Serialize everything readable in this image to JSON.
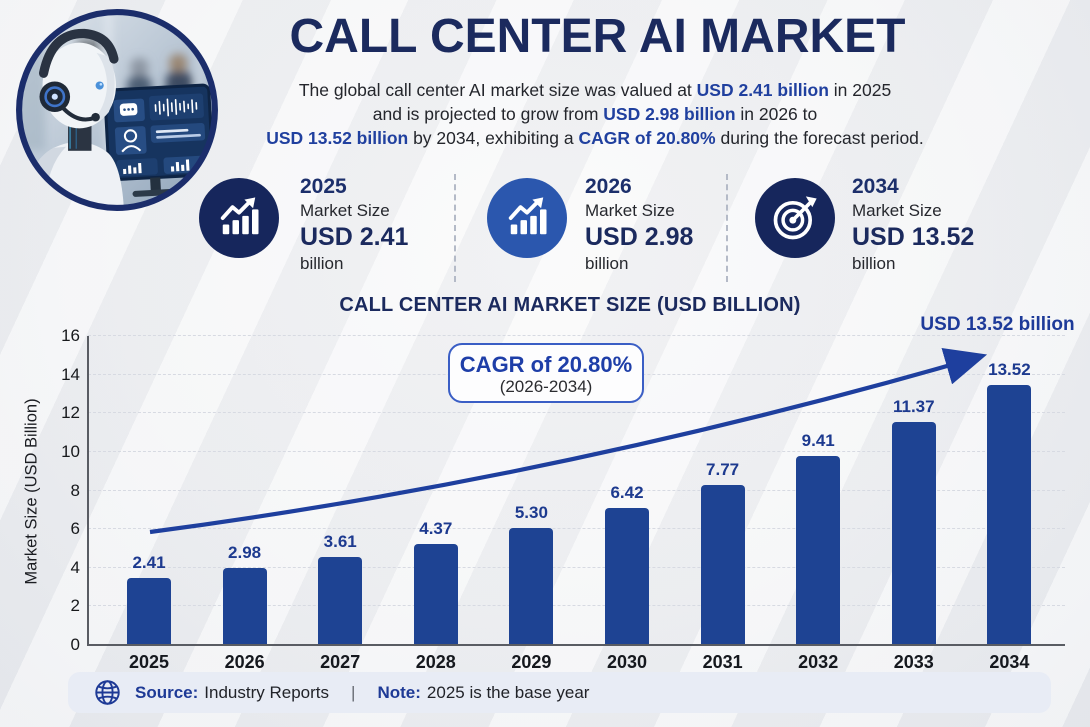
{
  "header": {
    "title": "CALL CENTER AI MARKET",
    "lines": [
      [
        {
          "t": "The global call center AI market size was valued at ",
          "em": false
        },
        {
          "t": "USD 2.41 billion",
          "em": true
        },
        {
          "t": " in 2025",
          "em": false
        }
      ],
      [
        {
          "t": "and is projected to grow from ",
          "em": false
        },
        {
          "t": "USD 2.98 billion",
          "em": true
        },
        {
          "t": " in 2026 to",
          "em": false
        }
      ],
      [
        {
          "t": "USD 13.52 billion",
          "em": true
        },
        {
          "t": " by 2034, exhibiting a ",
          "em": false
        },
        {
          "t": "CAGR of 20.80%",
          "em": true
        },
        {
          "t": " during the forecast period.",
          "em": false
        }
      ]
    ]
  },
  "stats": [
    {
      "year": "2025",
      "label": "Market Size",
      "value": "USD 2.41",
      "unit": "billion",
      "icon": "growth-chart-icon",
      "icon_bg": "#16265c"
    },
    {
      "year": "2026",
      "label": "Market Size",
      "value": "USD 2.98",
      "unit": "billion",
      "icon": "growth-chart-icon",
      "icon_bg": "#2b57ae"
    },
    {
      "year": "2034",
      "label": "Market Size",
      "value": "USD 13.52",
      "unit": "billion",
      "icon": "target-icon",
      "icon_bg": "#16265c"
    }
  ],
  "chart": {
    "title": "CALL CENTER AI MARKET SIZE (USD BILLION)",
    "peak_annotation": "USD 13.52 billion",
    "cagr_line1": "CAGR of 20.80%",
    "cagr_line2": "(2026-2034)",
    "ylabel": "Market Size (USD Billion)"
  },
  "chart_data": {
    "type": "bar",
    "title": "CALL CENTER AI MARKET SIZE (USD BILLION)",
    "categories": [
      "2025",
      "2026",
      "2027",
      "2028",
      "2029",
      "2030",
      "2031",
      "2032",
      "2033",
      "2034"
    ],
    "values": [
      2.41,
      2.98,
      3.61,
      4.37,
      5.3,
      6.42,
      7.77,
      9.41,
      11.37,
      13.52
    ],
    "value_labels": [
      "2.41",
      "2.98",
      "3.61",
      "4.37",
      "5.30",
      "6.42",
      "7.77",
      "9.41",
      "11.37",
      "13.52"
    ],
    "xlabel": "",
    "ylabel": "Market Size (USD Billion)",
    "ylim": [
      0,
      16
    ],
    "yticks": [
      0,
      2,
      4,
      6,
      8,
      10,
      12,
      14,
      16
    ],
    "grid": "horizontal-dashed",
    "legend": "none",
    "bar_color": "#1e4393",
    "annotations": [
      {
        "text": "USD 13.52 billion",
        "target": "2034"
      },
      {
        "text": "CAGR of 20.80% (2026-2034)",
        "type": "trend-arrow",
        "span": [
          "2025",
          "2034"
        ]
      }
    ]
  },
  "footer": {
    "source_label": "Source:",
    "source_value": "Industry Reports",
    "separator": "|",
    "note_label": "Note:",
    "note_value": "2025 is the base year"
  },
  "colors": {
    "navy": "#1b2a5e",
    "royal_blue": "#1e3ea8",
    "bar": "#1e4393",
    "value_label": "#1d3a8f",
    "footer_bg": "#e8ecf5",
    "grid": "#d9dce3",
    "axis": "#595c63",
    "background": "#f3f3f5"
  }
}
